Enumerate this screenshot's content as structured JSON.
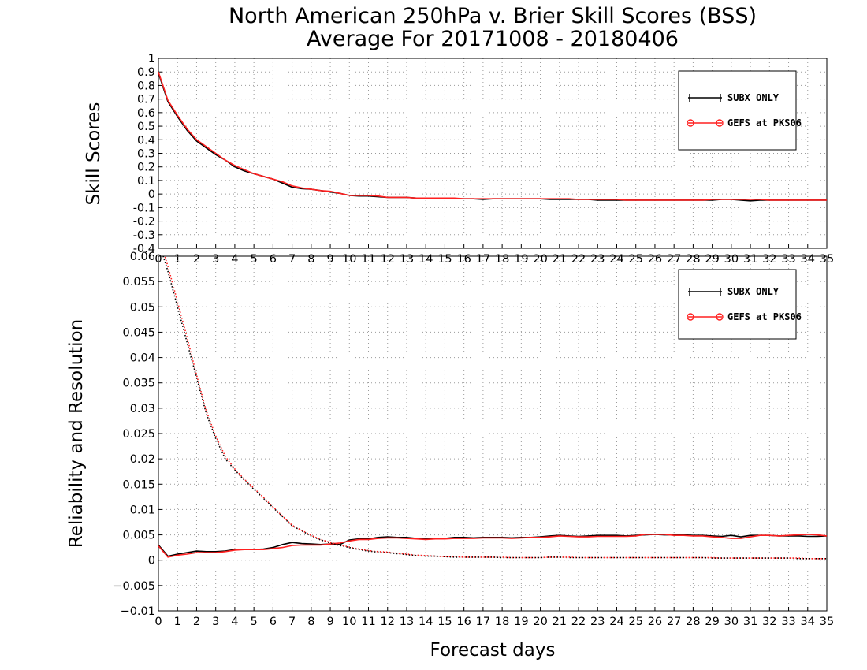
{
  "header": {
    "title": "North American 250hPa v. Brier Skill Scores (BSS)",
    "subtitle": "Average For 20171008 - 20180406"
  },
  "colors": {
    "series1": "#000000",
    "series2": "#ff2020",
    "grid": "#9a9a9a"
  },
  "chart_data": [
    {
      "type": "line",
      "title": "North American 250hPa v. Brier Skill Scores (BSS)",
      "subtitle": "Average For 20171008 - 20180406",
      "xlabel": "",
      "ylabel": "Skill Scores",
      "xlim": [
        0,
        35
      ],
      "ylim": [
        -0.4,
        1
      ],
      "x_ticks": [
        0,
        1,
        2,
        3,
        4,
        5,
        6,
        7,
        8,
        9,
        10,
        11,
        12,
        13,
        14,
        15,
        16,
        17,
        18,
        19,
        20,
        21,
        22,
        23,
        24,
        25,
        26,
        27,
        28,
        29,
        30,
        31,
        32,
        33,
        34,
        35
      ],
      "y_ticks": [
        "-0.4",
        "-0.3",
        "-0.2",
        "-0.1",
        "0",
        "0.1",
        "0.2",
        "0.3",
        "0.4",
        "0.5",
        "0.6",
        "0.7",
        "0.8",
        "0.9",
        "1"
      ],
      "grid": true,
      "legend": {
        "placement": "top-right",
        "entries": [
          "SUBX ONLY",
          "GEFS at PKS06"
        ]
      },
      "x": [
        0,
        0.5,
        1,
        1.5,
        2,
        2.5,
        3,
        3.5,
        4,
        4.5,
        5,
        5.5,
        6,
        6.5,
        7,
        7.5,
        8,
        8.5,
        9,
        9.5,
        10,
        10.5,
        11,
        11.5,
        12,
        12.5,
        13,
        13.5,
        14,
        14.5,
        15,
        15.5,
        16,
        16.5,
        17,
        17.5,
        18,
        18.5,
        19,
        19.5,
        20,
        20.5,
        21,
        21.5,
        22,
        22.5,
        23,
        23.5,
        24,
        24.5,
        25,
        25.5,
        26,
        26.5,
        27,
        27.5,
        28,
        28.5,
        29,
        29.5,
        30,
        30.5,
        31,
        31.5,
        32,
        32.5,
        33,
        33.5,
        34,
        34.5,
        35
      ],
      "series": [
        {
          "name": "SUBX ONLY",
          "values": [
            0.89,
            0.68,
            0.57,
            0.47,
            0.39,
            0.34,
            0.29,
            0.25,
            0.2,
            0.17,
            0.15,
            0.13,
            0.11,
            0.08,
            0.05,
            0.04,
            0.035,
            0.025,
            0.015,
            0.005,
            -0.01,
            -0.015,
            -0.015,
            -0.02,
            -0.025,
            -0.025,
            -0.025,
            -0.03,
            -0.03,
            -0.03,
            -0.035,
            -0.035,
            -0.035,
            -0.035,
            -0.04,
            -0.035,
            -0.035,
            -0.035,
            -0.035,
            -0.035,
            -0.035,
            -0.04,
            -0.04,
            -0.04,
            -0.04,
            -0.04,
            -0.045,
            -0.045,
            -0.045,
            -0.045,
            -0.045,
            -0.045,
            -0.045,
            -0.045,
            -0.045,
            -0.045,
            -0.045,
            -0.045,
            -0.045,
            -0.04,
            -0.04,
            -0.045,
            -0.05,
            -0.045,
            -0.045,
            -0.045,
            -0.045,
            -0.045,
            -0.045,
            -0.045,
            -0.045
          ]
        },
        {
          "name": "GEFS at PKS06",
          "values": [
            0.9,
            0.69,
            0.58,
            0.48,
            0.4,
            0.35,
            0.3,
            0.25,
            0.21,
            0.18,
            0.15,
            0.13,
            0.11,
            0.09,
            0.06,
            0.045,
            0.035,
            0.025,
            0.02,
            0.005,
            -0.01,
            -0.01,
            -0.01,
            -0.015,
            -0.025,
            -0.025,
            -0.025,
            -0.03,
            -0.03,
            -0.03,
            -0.03,
            -0.03,
            -0.035,
            -0.035,
            -0.035,
            -0.035,
            -0.035,
            -0.035,
            -0.035,
            -0.035,
            -0.035,
            -0.035,
            -0.035,
            -0.035,
            -0.04,
            -0.04,
            -0.04,
            -0.04,
            -0.04,
            -0.045,
            -0.045,
            -0.045,
            -0.045,
            -0.045,
            -0.045,
            -0.045,
            -0.045,
            -0.045,
            -0.04,
            -0.04,
            -0.04,
            -0.04,
            -0.04,
            -0.04,
            -0.045,
            -0.045,
            -0.045,
            -0.045,
            -0.045,
            -0.045,
            -0.045
          ]
        }
      ]
    },
    {
      "type": "line",
      "title": "",
      "xlabel": "Forecast days",
      "ylabel": "Reliability and Resolution",
      "xlim": [
        0,
        35
      ],
      "ylim": [
        -0.01,
        0.06
      ],
      "x_ticks": [
        0,
        1,
        2,
        3,
        4,
        5,
        6,
        7,
        8,
        9,
        10,
        11,
        12,
        13,
        14,
        15,
        16,
        17,
        18,
        19,
        20,
        21,
        22,
        23,
        24,
        25,
        26,
        27,
        28,
        29,
        30,
        31,
        32,
        33,
        34,
        35
      ],
      "y_ticks": [
        "−0.01",
        "−0.005",
        "0",
        "0.005",
        "0.01",
        "0.015",
        "0.02",
        "0.025",
        "0.03",
        "0.035",
        "0.04",
        "0.045",
        "0.05",
        "0.055",
        "0.06"
      ],
      "grid": true,
      "legend": {
        "placement": "top-right",
        "entries": [
          "SUBX ONLY",
          "GEFS at PKS06"
        ]
      },
      "x": [
        0,
        0.5,
        1,
        1.5,
        2,
        2.5,
        3,
        3.5,
        4,
        4.5,
        5,
        5.5,
        6,
        6.5,
        7,
        7.5,
        8,
        8.5,
        9,
        9.5,
        10,
        10.5,
        11,
        11.5,
        12,
        12.5,
        13,
        13.5,
        14,
        14.5,
        15,
        15.5,
        16,
        16.5,
        17,
        17.5,
        18,
        18.5,
        19,
        19.5,
        20,
        20.5,
        21,
        21.5,
        22,
        22.5,
        23,
        23.5,
        24,
        24.5,
        25,
        25.5,
        26,
        26.5,
        27,
        27.5,
        28,
        28.5,
        29,
        29.5,
        30,
        30.5,
        31,
        31.5,
        32,
        32.5,
        33,
        33.5,
        34,
        34.5,
        35
      ],
      "series": [
        {
          "name": "SUBX ONLY",
          "style": "solid",
          "values": [
            0.003,
            0.0008,
            0.0012,
            0.0015,
            0.0018,
            0.0017,
            0.0017,
            0.0018,
            0.0021,
            0.0021,
            0.0021,
            0.0022,
            0.0025,
            0.0031,
            0.0035,
            0.0033,
            0.0032,
            0.0031,
            0.0032,
            0.0031,
            0.004,
            0.0042,
            0.0042,
            0.0045,
            0.0046,
            0.0045,
            0.0045,
            0.0043,
            0.0042,
            0.0042,
            0.0043,
            0.0045,
            0.0045,
            0.0044,
            0.0045,
            0.0045,
            0.0045,
            0.0044,
            0.0045,
            0.0045,
            0.0046,
            0.0048,
            0.0049,
            0.0048,
            0.0047,
            0.0048,
            0.0049,
            0.0049,
            0.0049,
            0.0048,
            0.0049,
            0.005,
            0.0051,
            0.005,
            0.005,
            0.005,
            0.0049,
            0.0049,
            0.0048,
            0.0047,
            0.0049,
            0.0046,
            0.0049,
            0.0049,
            0.0049,
            0.0048,
            0.0048,
            0.0048,
            0.0047,
            0.0047,
            0.0048
          ]
        },
        {
          "name": "GEFS at PKS06",
          "style": "solid",
          "values": [
            0.0028,
            0.0006,
            0.001,
            0.0012,
            0.0015,
            0.0015,
            0.0015,
            0.0017,
            0.002,
            0.0021,
            0.0021,
            0.0021,
            0.0023,
            0.0025,
            0.0029,
            0.003,
            0.003,
            0.003,
            0.0032,
            0.0034,
            0.0038,
            0.0041,
            0.0041,
            0.0043,
            0.0044,
            0.0044,
            0.0043,
            0.0042,
            0.0041,
            0.0042,
            0.0042,
            0.0043,
            0.0043,
            0.0043,
            0.0044,
            0.0044,
            0.0044,
            0.0043,
            0.0044,
            0.0045,
            0.0045,
            0.0046,
            0.0048,
            0.0047,
            0.0046,
            0.0046,
            0.0047,
            0.0047,
            0.0047,
            0.0047,
            0.0048,
            0.0051,
            0.0051,
            0.0051,
            0.0049,
            0.0049,
            0.0048,
            0.0048,
            0.0046,
            0.0045,
            0.0043,
            0.0043,
            0.0046,
            0.0049,
            0.0049,
            0.0048,
            0.0049,
            0.005,
            0.0051,
            0.005,
            0.0048
          ]
        },
        {
          "name": "SUBX ONLY",
          "style": "dotted",
          "values": [
            0.063,
            0.057,
            0.05,
            0.043,
            0.036,
            0.029,
            0.024,
            0.02,
            0.0178,
            0.0158,
            0.014,
            0.0122,
            0.0104,
            0.0086,
            0.0068,
            0.0058,
            0.0048,
            0.004,
            0.0034,
            0.0029,
            0.0025,
            0.0021,
            0.0018,
            0.0016,
            0.0015,
            0.0013,
            0.0011,
            0.0009,
            0.0008,
            0.0008,
            0.0007,
            0.0006,
            0.0006,
            0.0006,
            0.0006,
            0.0006,
            0.0005,
            0.0005,
            0.0005,
            0.0005,
            0.0005,
            0.0006,
            0.0006,
            0.0005,
            0.0005,
            0.0005,
            0.0005,
            0.0005,
            0.0005,
            0.0005,
            0.0005,
            0.0005,
            0.0005,
            0.0005,
            0.0005,
            0.0005,
            0.0005,
            0.0005,
            0.0004,
            0.0004,
            0.0004,
            0.0004,
            0.0004,
            0.0004,
            0.0004,
            0.0004,
            0.0004,
            0.0003,
            0.0003,
            0.0003,
            0.0003
          ]
        },
        {
          "name": "GEFS at PKS06",
          "style": "dotted",
          "values": [
            0.064,
            0.058,
            0.051,
            0.044,
            0.0365,
            0.0295,
            0.0245,
            0.0205,
            0.018,
            0.016,
            0.0142,
            0.0124,
            0.0105,
            0.0087,
            0.0069,
            0.0059,
            0.0049,
            0.0041,
            0.0035,
            0.003,
            0.0026,
            0.0022,
            0.0019,
            0.0017,
            0.0016,
            0.0014,
            0.0012,
            0.001,
            0.0009,
            0.0008,
            0.0007,
            0.0007,
            0.0006,
            0.0006,
            0.0006,
            0.0006,
            0.0006,
            0.0005,
            0.0005,
            0.0005,
            0.0005,
            0.0006,
            0.0006,
            0.0006,
            0.0005,
            0.0005,
            0.0005,
            0.0005,
            0.0005,
            0.0005,
            0.0005,
            0.0005,
            0.0005,
            0.0005,
            0.0005,
            0.0005,
            0.0005,
            0.0005,
            0.0005,
            0.0004,
            0.0004,
            0.0004,
            0.0004,
            0.0004,
            0.0004,
            0.0004,
            0.0004,
            0.0004,
            0.0003,
            0.0003,
            0.0003
          ]
        }
      ]
    }
  ]
}
